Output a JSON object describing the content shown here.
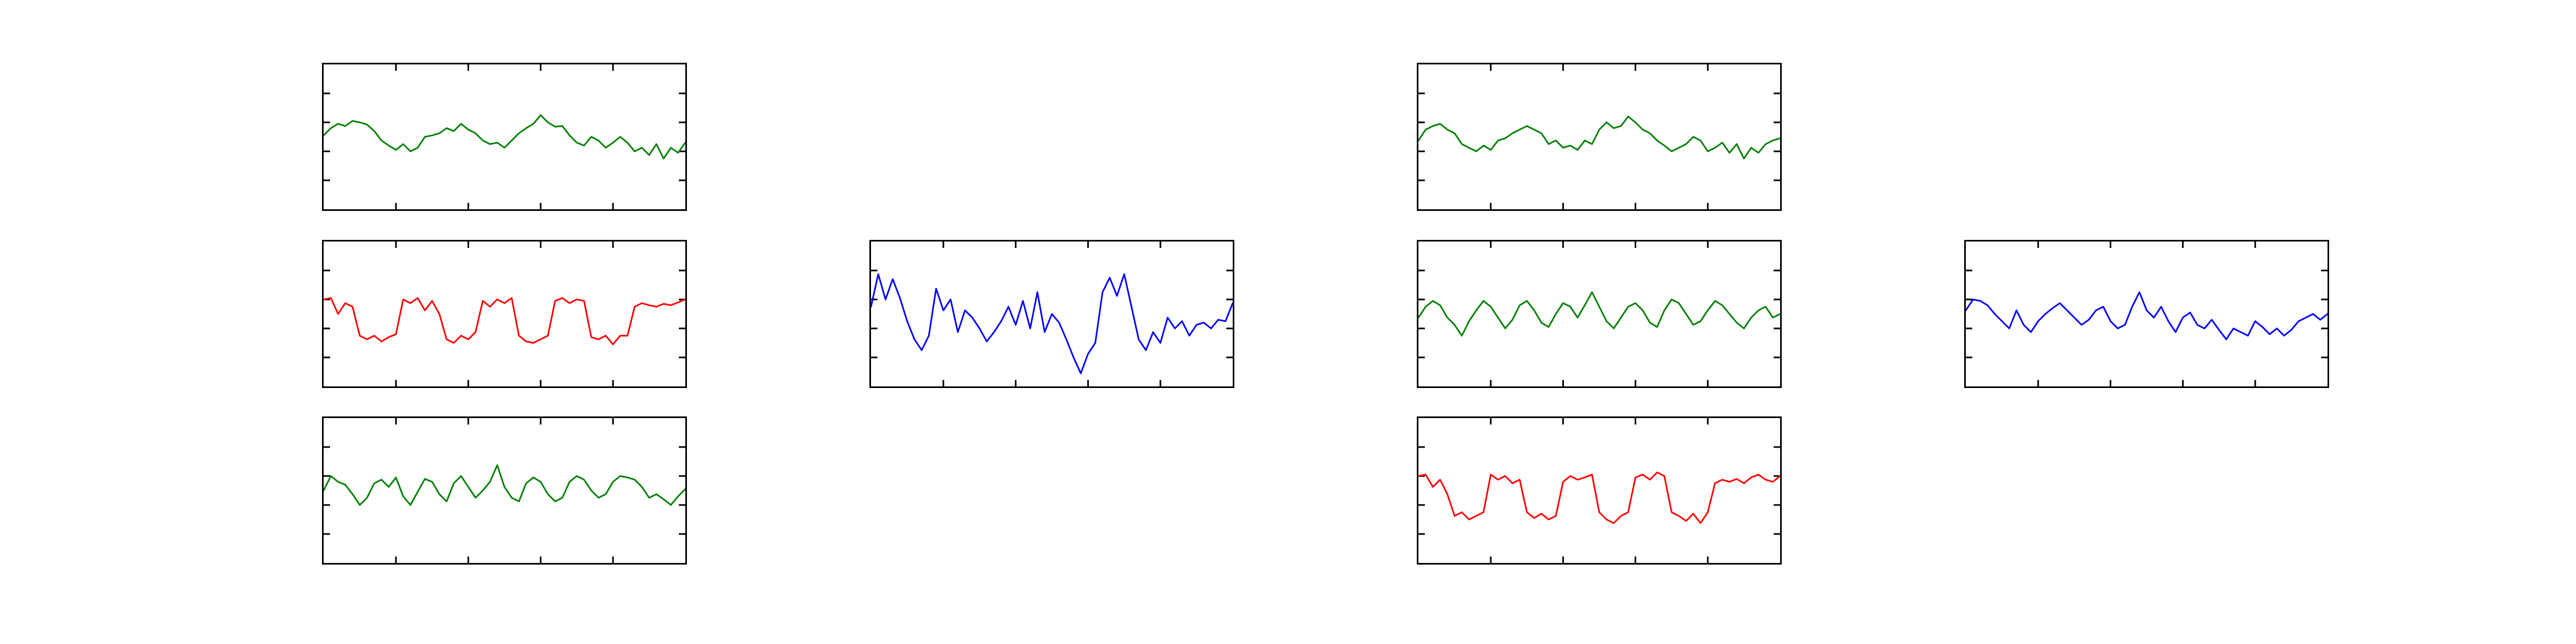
{
  "figure": {
    "background": "#ffffff"
  },
  "chart_data": [
    {
      "type": "line",
      "title": "",
      "xlabel": "",
      "ylabel": "",
      "xlim": [
        0,
        100
      ],
      "ylim": [
        -1,
        1
      ],
      "grid": false,
      "ticks_labeled": false,
      "series": [
        {
          "color": "#007f00",
          "x": [
            0,
            2,
            4,
            6,
            8,
            10,
            12,
            14,
            16,
            18,
            20,
            22,
            24,
            26,
            28,
            30,
            32,
            34,
            36,
            38,
            40,
            42,
            44,
            46,
            48,
            50,
            52,
            54,
            56,
            58,
            60,
            62,
            64,
            66,
            68,
            70,
            72,
            74,
            76,
            78,
            80,
            82,
            84,
            86,
            88,
            90,
            92,
            94,
            96,
            98,
            100
          ],
          "y": [
            0.02,
            0.12,
            0.18,
            0.15,
            0.22,
            0.2,
            0.17,
            0.08,
            -0.05,
            -0.12,
            -0.18,
            -0.1,
            -0.2,
            -0.15,
            0.0,
            0.02,
            0.05,
            0.12,
            0.08,
            0.18,
            0.1,
            0.05,
            -0.05,
            -0.1,
            -0.08,
            -0.15,
            -0.05,
            0.05,
            0.12,
            0.18,
            0.3,
            0.2,
            0.14,
            0.15,
            0.02,
            -0.08,
            -0.12,
            0.0,
            -0.05,
            -0.15,
            -0.08,
            0.0,
            -0.08,
            -0.2,
            -0.15,
            -0.25,
            -0.1,
            -0.3,
            -0.15,
            -0.22,
            -0.08
          ]
        }
      ]
    },
    {
      "type": "line",
      "title": "",
      "xlabel": "",
      "ylabel": "",
      "xlim": [
        0,
        100
      ],
      "ylim": [
        -1,
        1
      ],
      "grid": false,
      "ticks_labeled": false,
      "series": [
        {
          "color": "#ff0000",
          "x": [
            0,
            2,
            4,
            6,
            8,
            10,
            12,
            14,
            16,
            18,
            20,
            22,
            24,
            26,
            28,
            30,
            32,
            34,
            36,
            38,
            40,
            42,
            44,
            46,
            48,
            50,
            52,
            54,
            56,
            58,
            60,
            62,
            64,
            66,
            68,
            70,
            72,
            74,
            76,
            78,
            80,
            82,
            84,
            86,
            88,
            90,
            92,
            94,
            96,
            98,
            100
          ],
          "y": [
            0.2,
            0.22,
            0.0,
            0.15,
            0.1,
            -0.3,
            -0.35,
            -0.3,
            -0.38,
            -0.32,
            -0.28,
            0.2,
            0.15,
            0.22,
            0.05,
            0.18,
            0.0,
            -0.35,
            -0.4,
            -0.3,
            -0.35,
            -0.25,
            0.18,
            0.1,
            0.2,
            0.15,
            0.22,
            -0.3,
            -0.38,
            -0.4,
            -0.35,
            -0.3,
            0.18,
            0.22,
            0.15,
            0.2,
            0.18,
            -0.32,
            -0.35,
            -0.3,
            -0.42,
            -0.3,
            -0.3,
            0.1,
            0.15,
            0.12,
            0.1,
            0.14,
            0.12,
            0.16,
            0.2
          ]
        }
      ]
    },
    {
      "type": "line",
      "title": "",
      "xlabel": "",
      "ylabel": "",
      "xlim": [
        0,
        100
      ],
      "ylim": [
        -1,
        1
      ],
      "grid": false,
      "ticks_labeled": false,
      "series": [
        {
          "color": "#007f00",
          "x": [
            0,
            2,
            4,
            6,
            8,
            10,
            12,
            14,
            16,
            18,
            20,
            22,
            24,
            26,
            28,
            30,
            32,
            34,
            36,
            38,
            40,
            42,
            44,
            46,
            48,
            50,
            52,
            54,
            56,
            58,
            60,
            62,
            64,
            66,
            68,
            70,
            72,
            74,
            76,
            78,
            80,
            82,
            84,
            86,
            88,
            90,
            92,
            94,
            96,
            98,
            100
          ],
          "y": [
            0.0,
            0.2,
            0.12,
            0.08,
            -0.05,
            -0.2,
            -0.1,
            0.1,
            0.15,
            0.05,
            0.18,
            -0.08,
            -0.2,
            -0.02,
            0.16,
            0.12,
            -0.05,
            -0.15,
            0.1,
            0.2,
            0.05,
            -0.1,
            0.0,
            0.12,
            0.35,
            0.05,
            -0.1,
            -0.15,
            0.1,
            0.18,
            0.12,
            -0.05,
            -0.15,
            -0.1,
            0.12,
            0.2,
            0.15,
            0.0,
            -0.1,
            -0.05,
            0.12,
            0.2,
            0.18,
            0.15,
            0.05,
            -0.1,
            -0.05,
            -0.12,
            -0.2,
            -0.08,
            0.02
          ]
        }
      ]
    },
    {
      "type": "line",
      "title": "",
      "xlabel": "",
      "ylabel": "",
      "xlim": [
        0,
        100
      ],
      "ylim": [
        -1,
        1
      ],
      "grid": false,
      "ticks_labeled": false,
      "series": [
        {
          "color": "#0000ff",
          "x": [
            0,
            2,
            4,
            6,
            8,
            10,
            12,
            14,
            16,
            18,
            20,
            22,
            24,
            26,
            28,
            30,
            32,
            34,
            36,
            38,
            40,
            42,
            44,
            46,
            48,
            50,
            52,
            54,
            56,
            58,
            60,
            62,
            64,
            66,
            68,
            70,
            72,
            74,
            76,
            78,
            80,
            82,
            84,
            86,
            88,
            90,
            92,
            94,
            96,
            98,
            100
          ],
          "y": [
            0.1,
            0.55,
            0.2,
            0.48,
            0.22,
            -0.1,
            -0.35,
            -0.5,
            -0.3,
            0.35,
            0.05,
            0.2,
            -0.25,
            0.05,
            -0.05,
            -0.2,
            -0.38,
            -0.25,
            -0.1,
            0.1,
            -0.15,
            0.18,
            -0.2,
            0.3,
            -0.25,
            0.0,
            -0.12,
            -0.35,
            -0.6,
            -0.82,
            -0.55,
            -0.4,
            0.3,
            0.5,
            0.25,
            0.55,
            0.1,
            -0.35,
            -0.5,
            -0.25,
            -0.4,
            -0.05,
            -0.2,
            -0.1,
            -0.3,
            -0.15,
            -0.12,
            -0.2,
            -0.08,
            -0.1,
            0.15
          ]
        }
      ]
    },
    {
      "type": "line",
      "title": "",
      "xlabel": "",
      "ylabel": "",
      "xlim": [
        0,
        100
      ],
      "ylim": [
        -1,
        1
      ],
      "grid": false,
      "ticks_labeled": false,
      "series": [
        {
          "color": "#007f00",
          "x": [
            0,
            2,
            4,
            6,
            8,
            10,
            12,
            14,
            16,
            18,
            20,
            22,
            24,
            26,
            28,
            30,
            32,
            34,
            36,
            38,
            40,
            42,
            44,
            46,
            48,
            50,
            52,
            54,
            56,
            58,
            60,
            62,
            64,
            66,
            68,
            70,
            72,
            74,
            76,
            78,
            80,
            82,
            84,
            86,
            88,
            90,
            92,
            94,
            96,
            98,
            100
          ],
          "y": [
            -0.05,
            0.1,
            0.15,
            0.18,
            0.1,
            0.05,
            -0.1,
            -0.15,
            -0.2,
            -0.12,
            -0.18,
            -0.05,
            -0.02,
            0.05,
            0.1,
            0.15,
            0.1,
            0.05,
            -0.1,
            -0.05,
            -0.15,
            -0.12,
            -0.18,
            -0.05,
            -0.1,
            0.1,
            0.2,
            0.12,
            0.15,
            0.28,
            0.2,
            0.1,
            0.05,
            -0.05,
            -0.12,
            -0.2,
            -0.15,
            -0.1,
            0.0,
            -0.05,
            -0.2,
            -0.15,
            -0.08,
            -0.22,
            -0.1,
            -0.3,
            -0.15,
            -0.22,
            -0.1,
            -0.05,
            -0.02
          ]
        }
      ]
    },
    {
      "type": "line",
      "title": "",
      "xlabel": "",
      "ylabel": "",
      "xlim": [
        0,
        100
      ],
      "ylim": [
        -1,
        1
      ],
      "grid": false,
      "ticks_labeled": false,
      "series": [
        {
          "color": "#007f00",
          "x": [
            0,
            2,
            4,
            6,
            8,
            10,
            12,
            14,
            16,
            18,
            20,
            22,
            24,
            26,
            28,
            30,
            32,
            34,
            36,
            38,
            40,
            42,
            44,
            46,
            48,
            50,
            52,
            54,
            56,
            58,
            60,
            62,
            64,
            66,
            68,
            70,
            72,
            74,
            76,
            78,
            80,
            82,
            84,
            86,
            88,
            90,
            92,
            94,
            96,
            98,
            100
          ],
          "y": [
            -0.05,
            0.1,
            0.18,
            0.12,
            -0.05,
            -0.15,
            -0.3,
            -0.1,
            0.05,
            0.18,
            0.1,
            -0.05,
            -0.2,
            -0.08,
            0.12,
            0.18,
            0.05,
            -0.12,
            -0.18,
            0.0,
            0.15,
            0.1,
            -0.05,
            0.12,
            0.3,
            0.1,
            -0.1,
            -0.2,
            -0.05,
            0.1,
            0.15,
            0.05,
            -0.12,
            -0.18,
            0.05,
            0.2,
            0.15,
            0.0,
            -0.15,
            -0.1,
            0.05,
            0.18,
            0.12,
            0.0,
            -0.12,
            -0.2,
            -0.05,
            0.05,
            0.1,
            -0.05,
            0.0
          ]
        }
      ]
    },
    {
      "type": "line",
      "title": "",
      "xlabel": "",
      "ylabel": "",
      "xlim": [
        0,
        100
      ],
      "ylim": [
        -1,
        1
      ],
      "grid": false,
      "ticks_labeled": false,
      "series": [
        {
          "color": "#ff0000",
          "x": [
            0,
            2,
            4,
            6,
            8,
            10,
            12,
            14,
            16,
            18,
            20,
            22,
            24,
            26,
            28,
            30,
            32,
            34,
            36,
            38,
            40,
            42,
            44,
            46,
            48,
            50,
            52,
            54,
            56,
            58,
            60,
            62,
            64,
            66,
            68,
            70,
            72,
            74,
            76,
            78,
            80,
            82,
            84,
            86,
            88,
            90,
            92,
            94,
            96,
            98,
            100
          ],
          "y": [
            0.2,
            0.22,
            0.05,
            0.15,
            -0.05,
            -0.35,
            -0.3,
            -0.4,
            -0.35,
            -0.3,
            0.22,
            0.15,
            0.2,
            0.1,
            0.15,
            -0.3,
            -0.38,
            -0.32,
            -0.4,
            -0.35,
            0.12,
            0.2,
            0.15,
            0.18,
            0.22,
            -0.3,
            -0.4,
            -0.45,
            -0.35,
            -0.3,
            0.18,
            0.22,
            0.15,
            0.25,
            0.2,
            -0.3,
            -0.35,
            -0.42,
            -0.32,
            -0.45,
            -0.3,
            0.1,
            0.15,
            0.12,
            0.16,
            0.1,
            0.18,
            0.22,
            0.15,
            0.12,
            0.2
          ]
        }
      ]
    },
    {
      "type": "line",
      "title": "",
      "xlabel": "",
      "ylabel": "",
      "xlim": [
        0,
        100
      ],
      "ylim": [
        -1,
        1
      ],
      "grid": false,
      "ticks_labeled": false,
      "series": [
        {
          "color": "#0000ff",
          "x": [
            0,
            2,
            4,
            6,
            8,
            10,
            12,
            14,
            16,
            18,
            20,
            22,
            24,
            26,
            28,
            30,
            32,
            34,
            36,
            38,
            40,
            42,
            44,
            46,
            48,
            50,
            52,
            54,
            56,
            58,
            60,
            62,
            64,
            66,
            68,
            70,
            72,
            74,
            76,
            78,
            80,
            82,
            84,
            86,
            88,
            90,
            92,
            94,
            96,
            98,
            100
          ],
          "y": [
            0.05,
            0.2,
            0.18,
            0.12,
            0.0,
            -0.1,
            -0.2,
            0.05,
            -0.15,
            -0.25,
            -0.1,
            0.0,
            0.08,
            0.15,
            0.05,
            -0.05,
            -0.15,
            -0.08,
            0.05,
            0.1,
            -0.1,
            -0.2,
            -0.15,
            0.1,
            0.3,
            0.05,
            -0.05,
            0.1,
            -0.1,
            -0.25,
            -0.05,
            0.02,
            -0.15,
            -0.2,
            -0.08,
            -0.22,
            -0.35,
            -0.2,
            -0.25,
            -0.3,
            -0.1,
            -0.18,
            -0.28,
            -0.2,
            -0.3,
            -0.22,
            -0.1,
            -0.05,
            0.0,
            -0.08,
            0.0
          ]
        }
      ]
    }
  ]
}
